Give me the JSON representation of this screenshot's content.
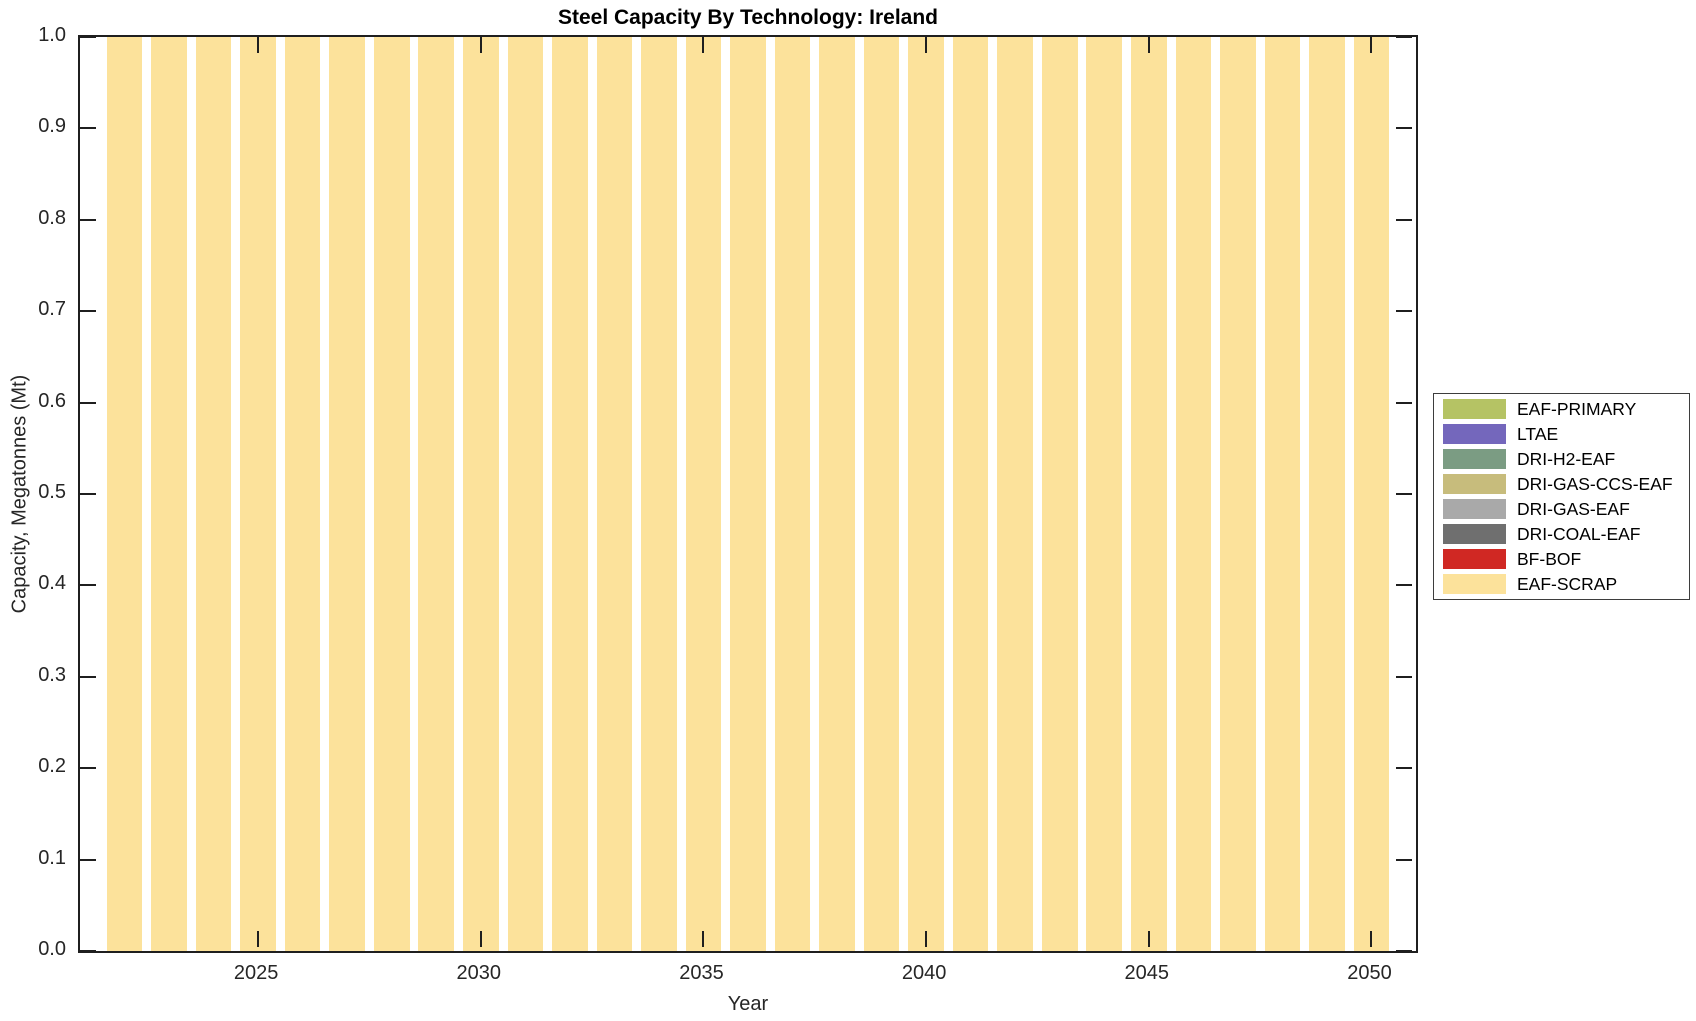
{
  "figure": {
    "background": "#ffffff",
    "axis_color": "#1f1f1f",
    "tick_label_color": "#262626"
  },
  "chart_data": {
    "type": "bar",
    "stacked": true,
    "title": "Steel Capacity By Technology: Ireland",
    "xlabel": "Year",
    "ylabel": "Capacity, Megatonnes (Mt)",
    "xlim": [
      2021,
      2051
    ],
    "ylim": [
      0.0,
      1.0
    ],
    "xticks": [
      2025,
      2030,
      2035,
      2040,
      2045,
      2050
    ],
    "yticks": [
      0.0,
      0.1,
      0.2,
      0.3,
      0.4,
      0.5,
      0.6,
      0.7,
      0.8,
      0.9,
      1.0
    ],
    "bar_width": 0.8,
    "grid": false,
    "legend_position": "right-outside",
    "categories": [
      2022,
      2023,
      2024,
      2025,
      2026,
      2027,
      2028,
      2029,
      2030,
      2031,
      2032,
      2033,
      2034,
      2035,
      2036,
      2037,
      2038,
      2039,
      2040,
      2041,
      2042,
      2043,
      2044,
      2045,
      2046,
      2047,
      2048,
      2049,
      2050
    ],
    "series": [
      {
        "name": "EAF-PRIMARY",
        "color": "#b5c364",
        "values": [
          0,
          0,
          0,
          0,
          0,
          0,
          0,
          0,
          0,
          0,
          0,
          0,
          0,
          0,
          0,
          0,
          0,
          0,
          0,
          0,
          0,
          0,
          0,
          0,
          0,
          0,
          0,
          0,
          0
        ]
      },
      {
        "name": "LTAE",
        "color": "#7467bc",
        "values": [
          0,
          0,
          0,
          0,
          0,
          0,
          0,
          0,
          0,
          0,
          0,
          0,
          0,
          0,
          0,
          0,
          0,
          0,
          0,
          0,
          0,
          0,
          0,
          0,
          0,
          0,
          0,
          0,
          0
        ]
      },
      {
        "name": "DRI-H2-EAF",
        "color": "#7b9c83",
        "values": [
          0,
          0,
          0,
          0,
          0,
          0,
          0,
          0,
          0,
          0,
          0,
          0,
          0,
          0,
          0,
          0,
          0,
          0,
          0,
          0,
          0,
          0,
          0,
          0,
          0,
          0,
          0,
          0,
          0
        ]
      },
      {
        "name": "DRI-GAS-CCS-EAF",
        "color": "#c7bc7c",
        "values": [
          0,
          0,
          0,
          0,
          0,
          0,
          0,
          0,
          0,
          0,
          0,
          0,
          0,
          0,
          0,
          0,
          0,
          0,
          0,
          0,
          0,
          0,
          0,
          0,
          0,
          0,
          0,
          0,
          0
        ]
      },
      {
        "name": "DRI-GAS-EAF",
        "color": "#a9a9a9",
        "values": [
          0,
          0,
          0,
          0,
          0,
          0,
          0,
          0,
          0,
          0,
          0,
          0,
          0,
          0,
          0,
          0,
          0,
          0,
          0,
          0,
          0,
          0,
          0,
          0,
          0,
          0,
          0,
          0,
          0
        ]
      },
      {
        "name": "DRI-COAL-EAF",
        "color": "#6f6f6f",
        "values": [
          0,
          0,
          0,
          0,
          0,
          0,
          0,
          0,
          0,
          0,
          0,
          0,
          0,
          0,
          0,
          0,
          0,
          0,
          0,
          0,
          0,
          0,
          0,
          0,
          0,
          0,
          0,
          0,
          0
        ]
      },
      {
        "name": "BF-BOF",
        "color": "#d02823",
        "values": [
          0,
          0,
          0,
          0,
          0,
          0,
          0,
          0,
          0,
          0,
          0,
          0,
          0,
          0,
          0,
          0,
          0,
          0,
          0,
          0,
          0,
          0,
          0,
          0,
          0,
          0,
          0,
          0,
          0
        ]
      },
      {
        "name": "EAF-SCRAP",
        "color": "#fce29b",
        "values": [
          1,
          1,
          1,
          1,
          1,
          1,
          1,
          1,
          1,
          1,
          1,
          1,
          1,
          1,
          1,
          1,
          1,
          1,
          1,
          1,
          1,
          1,
          1,
          1,
          1,
          1,
          1,
          1,
          1
        ]
      }
    ]
  }
}
